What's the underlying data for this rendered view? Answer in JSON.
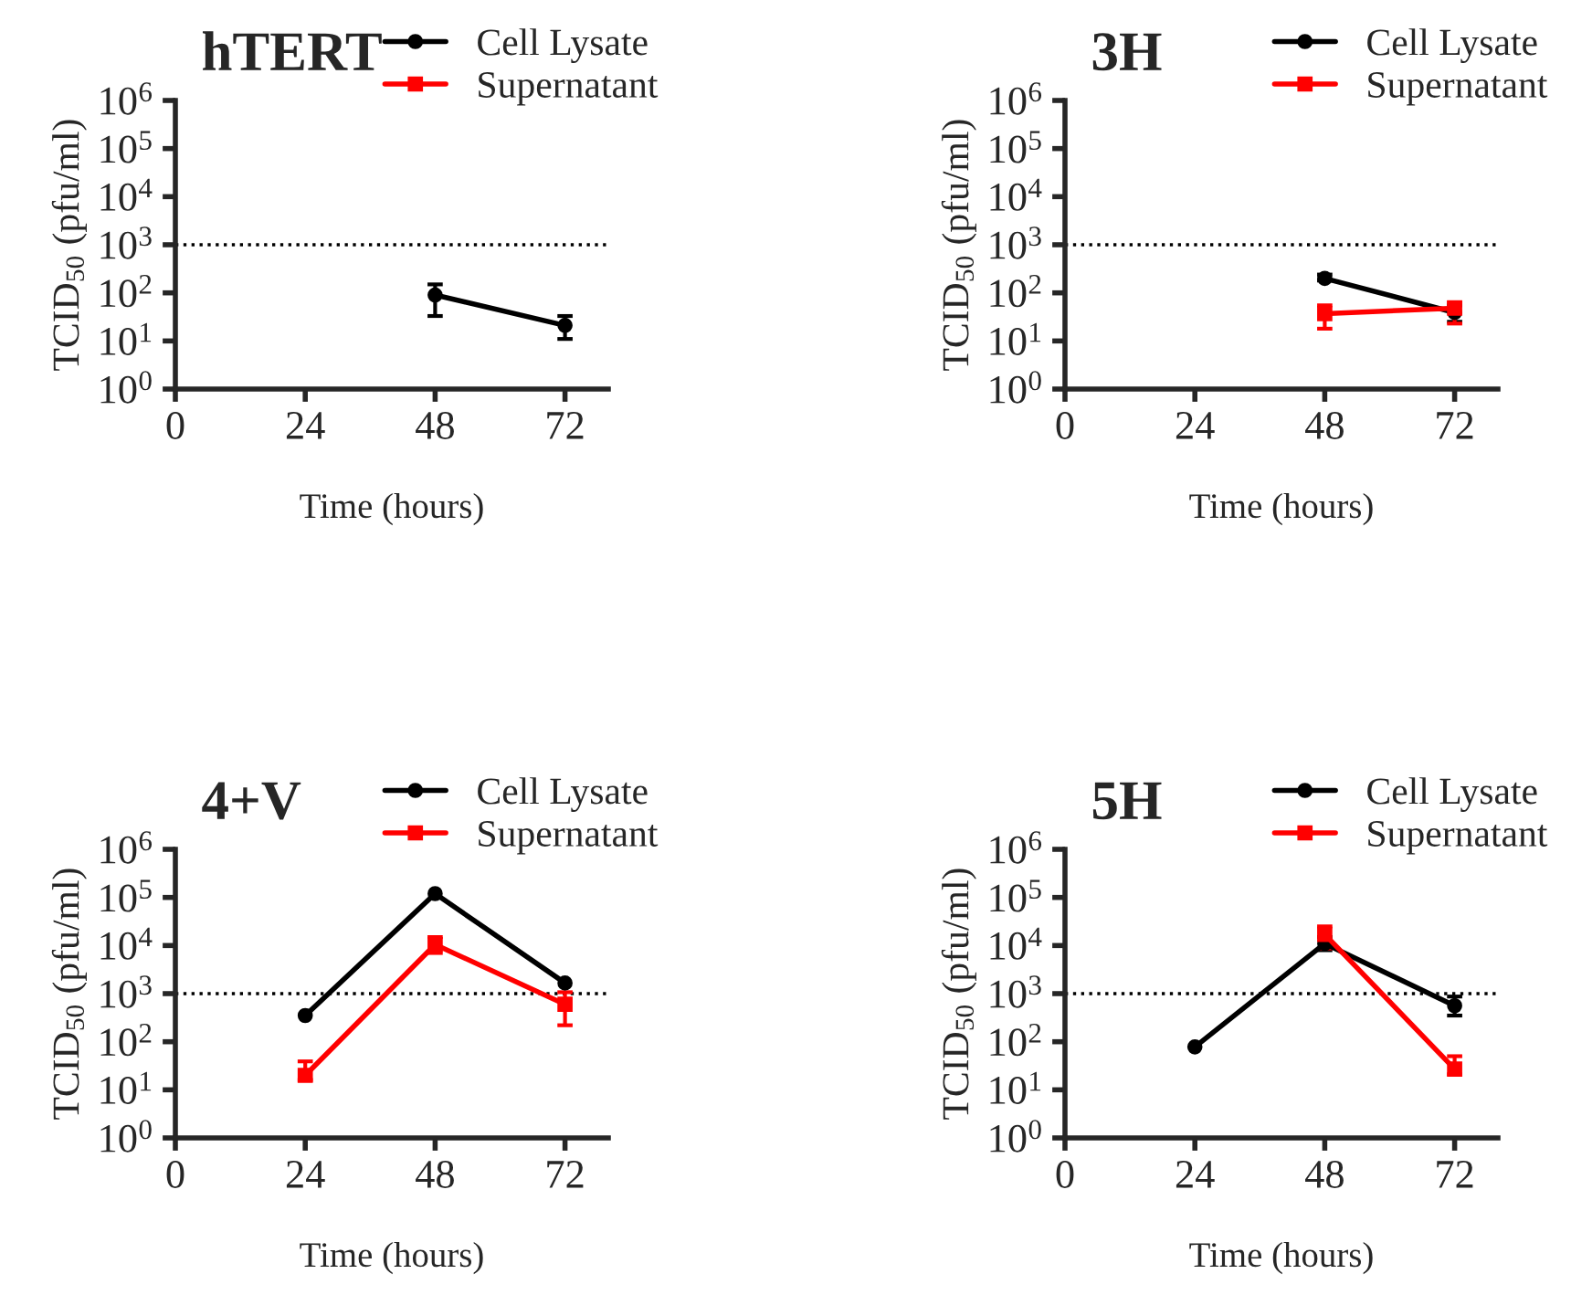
{
  "chart_data": [
    {
      "type": "line",
      "title": "hTERT",
      "xlabel": "Time (hours)",
      "ylabel": "TCID$_{50}$ (pfu/ml)",
      "x": [
        48,
        72
      ],
      "log": true,
      "xlim": [
        0,
        80
      ],
      "xticks": [
        0,
        24,
        48,
        72
      ],
      "ylim": [
        1,
        1000000
      ],
      "yticks": [
        {
          "value": 1,
          "label": "10$^{0}$"
        },
        {
          "value": 10,
          "label": "10$^{1}$"
        },
        {
          "value": 100,
          "label": "10$^{2}$"
        },
        {
          "value": 1000,
          "label": "10$^{3}$"
        },
        {
          "value": 10000,
          "label": "10$^{4}$"
        },
        {
          "value": 100000,
          "label": "10$^{5}$"
        },
        {
          "value": 1000000,
          "label": "10$^{6}$"
        }
      ],
      "legend": "top right",
      "grid": false,
      "line_style": "solid",
      "ref_lines": [
        {
          "axis": "y",
          "value": 1000,
          "line_style": "dotted",
          "color": "#000000"
        }
      ],
      "series": [
        {
          "name": "Cell Lysate",
          "color": "#000000",
          "marker": "circle",
          "values": [
            90,
            21
          ],
          "errors": [
            [
              33,
              150
            ],
            [
              11,
              33
            ]
          ]
        },
        {
          "name": "Supernatant",
          "color": "#ff0000",
          "marker": "square",
          "values": [
            null,
            null
          ]
        }
      ]
    },
    {
      "type": "line",
      "title": "3H",
      "xlabel": "Time (hours)",
      "ylabel": "TCID$_{50}$ (pfu/ml)",
      "x": [
        48,
        72
      ],
      "log": true,
      "xlim": [
        0,
        80
      ],
      "xticks": [
        0,
        24,
        48,
        72
      ],
      "ylim": [
        1,
        1000000
      ],
      "yticks": [
        {
          "value": 1,
          "label": "10$^{0}$"
        },
        {
          "value": 10,
          "label": "10$^{1}$"
        },
        {
          "value": 100,
          "label": "10$^{2}$"
        },
        {
          "value": 1000,
          "label": "10$^{3}$"
        },
        {
          "value": 10000,
          "label": "10$^{4}$"
        },
        {
          "value": 100000,
          "label": "10$^{5}$"
        },
        {
          "value": 1000000,
          "label": "10$^{6}$"
        }
      ],
      "legend": "top right",
      "grid": false,
      "line_style": "solid",
      "ref_lines": [
        {
          "axis": "y",
          "value": 1000,
          "line_style": "dotted",
          "color": "#000000"
        }
      ],
      "series": [
        {
          "name": "Cell Lysate",
          "color": "#000000",
          "marker": "circle",
          "values": [
            200,
            39
          ],
          "errors": [
            [
              180,
              240
            ],
            [
              25,
              55
            ]
          ]
        },
        {
          "name": "Supernatant",
          "color": "#ff0000",
          "marker": "square",
          "values": [
            37,
            48
          ],
          "errors": [
            [
              18,
              55
            ],
            [
              23,
              64
            ]
          ]
        }
      ]
    },
    {
      "type": "line",
      "title": "4+V",
      "xlabel": "Time (hours)",
      "ylabel": "TCID$_{50}$ (pfu/ml)",
      "x": [
        24,
        48,
        72
      ],
      "log": true,
      "xlim": [
        0,
        80
      ],
      "xticks": [
        0,
        24,
        48,
        72
      ],
      "ylim": [
        1,
        1000000
      ],
      "yticks": [
        {
          "value": 1,
          "label": "10$^{0}$"
        },
        {
          "value": 10,
          "label": "10$^{1}$"
        },
        {
          "value": 100,
          "label": "10$^{2}$"
        },
        {
          "value": 1000,
          "label": "10$^{3}$"
        },
        {
          "value": 10000,
          "label": "10$^{4}$"
        },
        {
          "value": 100000,
          "label": "10$^{5}$"
        },
        {
          "value": 1000000,
          "label": "10$^{6}$"
        }
      ],
      "legend": "top right",
      "grid": false,
      "line_style": "solid",
      "ref_lines": [
        {
          "axis": "y",
          "value": 1000,
          "line_style": "dotted",
          "color": "#000000"
        }
      ],
      "series": [
        {
          "name": "Cell Lysate",
          "color": "#000000",
          "marker": "circle",
          "values": [
            350,
            120000,
            1660
          ]
        },
        {
          "name": "Supernatant",
          "color": "#ff0000",
          "marker": "square",
          "values": [
            20,
            10500,
            600
          ],
          "errors": [
            [
              16,
              39
            ],
            [
              7000,
              15000
            ],
            [
              220,
              1070
            ]
          ]
        }
      ]
    },
    {
      "type": "line",
      "title": "5H",
      "xlabel": "Time (hours)",
      "ylabel": "TCID$_{50}$ (pfu/ml)",
      "x": [
        24,
        48,
        72
      ],
      "log": true,
      "xlim": [
        0,
        80
      ],
      "xticks": [
        0,
        24,
        48,
        72
      ],
      "ylim": [
        1,
        1000000
      ],
      "yticks": [
        {
          "value": 1,
          "label": "10$^{0}$"
        },
        {
          "value": 10,
          "label": "10$^{1}$"
        },
        {
          "value": 100,
          "label": "10$^{2}$"
        },
        {
          "value": 1000,
          "label": "10$^{3}$"
        },
        {
          "value": 10000,
          "label": "10$^{4}$"
        },
        {
          "value": 100000,
          "label": "10$^{5}$"
        },
        {
          "value": 1000000,
          "label": "10$^{6}$"
        }
      ],
      "legend": "top right",
      "grid": false,
      "line_style": "solid",
      "ref_lines": [
        {
          "axis": "y",
          "value": 1000,
          "line_style": "dotted",
          "color": "#000000"
        }
      ],
      "series": [
        {
          "name": "Cell Lysate",
          "color": "#000000",
          "marker": "circle",
          "values": [
            78,
            11000,
            560
          ],
          "errors": [
            null,
            [
              8000,
              15000
            ],
            [
              350,
              870
            ]
          ]
        },
        {
          "name": "Supernatant",
          "color": "#ff0000",
          "marker": "square",
          "values": [
            null,
            17000,
            27
          ],
          "errors": [
            null,
            [
              8700,
              25000
            ],
            [
              21,
              50
            ]
          ]
        }
      ]
    }
  ]
}
